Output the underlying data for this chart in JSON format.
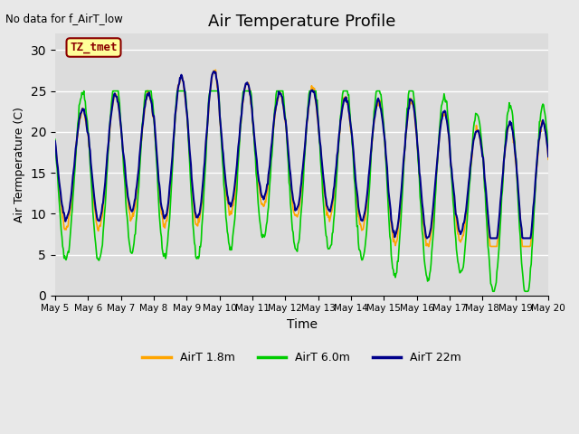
{
  "title": "Air Temperature Profile",
  "xlabel": "Time",
  "ylabel": "Air Termperature (C)",
  "top_left_text": "No data for f_AirT_low",
  "annotation_box_text": "TZ_tmet",
  "annotation_box_color": "#8B0000",
  "annotation_box_bg": "#FFFF99",
  "ylim": [
    0,
    32
  ],
  "yticks": [
    0,
    5,
    10,
    15,
    20,
    25,
    30
  ],
  "background_color": "#E8E8E8",
  "plot_bg_color": "#DCDCDC",
  "line_colors": {
    "airt_18m": "#FFA500",
    "airt_60m": "#00CC00",
    "airt_22m": "#00008B"
  },
  "legend_labels": [
    "AirT 1.8m",
    "AirT 6.0m",
    "AirT 22m"
  ],
  "xtick_labels": [
    "May 5",
    "May 6",
    "May 7",
    "May 8",
    "May 9",
    "May 10",
    "May 11",
    "May 12",
    "May 13",
    "May 14",
    "May 15",
    "May 16",
    "May 17",
    "May 18",
    "May 19",
    "May 20"
  ],
  "n_days": 15,
  "samples_per_day": 48,
  "seed": 42
}
